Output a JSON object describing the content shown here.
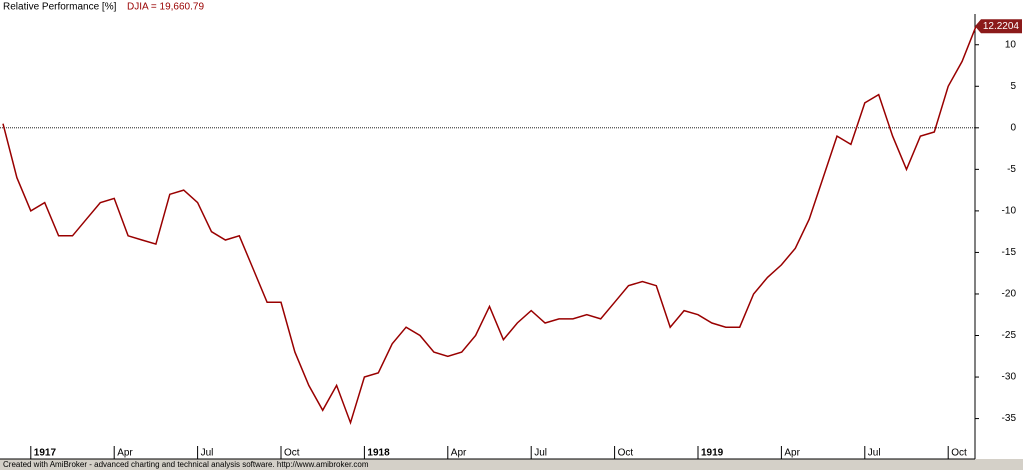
{
  "chart_data": {
    "type": "line",
    "title": "Relative Performance [%]",
    "categories": [
      null,
      null,
      "1917",
      null,
      null,
      null,
      null,
      null,
      "Apr",
      null,
      null,
      null,
      null,
      null,
      "Jul",
      null,
      null,
      null,
      null,
      null,
      "Oct",
      null,
      null,
      null,
      null,
      null,
      "1918",
      null,
      null,
      null,
      null,
      null,
      "Apr",
      null,
      null,
      null,
      null,
      null,
      "Jul",
      null,
      null,
      null,
      null,
      null,
      "Oct",
      null,
      null,
      null,
      null,
      null,
      "1919",
      null,
      null,
      null,
      null,
      null,
      "Apr",
      null,
      null,
      null,
      null,
      null,
      "Jul",
      null,
      null,
      null,
      null,
      null,
      "Oct",
      null,
      null
    ],
    "series": [
      {
        "name": "DJIA = 19,660.79",
        "color": "#990000",
        "values": [
          0.5,
          -6,
          -10,
          -9,
          -13,
          -13,
          -11,
          -9,
          -8.5,
          -13,
          -13.5,
          -14,
          -8,
          -7.5,
          -9,
          -12.5,
          -13.5,
          -13,
          -17,
          -21,
          -21,
          -27,
          -31,
          -34,
          -31,
          -35.5,
          -30,
          -29.5,
          -26,
          -24,
          -25,
          -27,
          -27.5,
          -27,
          -25,
          -21.5,
          -25.5,
          -23.5,
          -22,
          -23.5,
          -23,
          -23,
          -22.5,
          -23,
          -21,
          -19,
          -18.5,
          -19,
          -24,
          -22,
          -22.5,
          -23.5,
          -24,
          -24,
          -20,
          -18,
          -16.5,
          -14.5,
          -11,
          -6,
          -1,
          -2,
          3,
          4,
          -1,
          -5,
          -1,
          -0.5,
          5,
          8,
          12.2204
        ]
      }
    ],
    "ylim": [
      -38.3,
      13.7
    ],
    "yticks": [
      10,
      5,
      0,
      -5,
      -10,
      -15,
      -20,
      -25,
      -30,
      -35
    ],
    "reference_line": 0,
    "footer": "Created with AmiBroker - advanced charting and technical analysis software. http://www.amibroker.com"
  }
}
